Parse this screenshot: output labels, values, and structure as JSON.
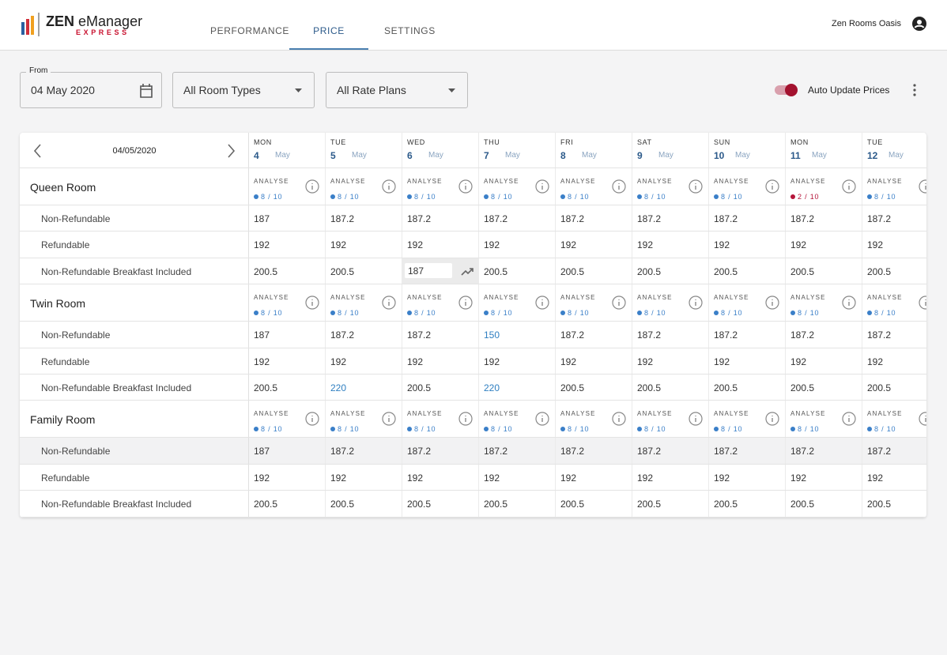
{
  "header": {
    "logo": {
      "brand": "ZEN",
      "product": "eManager",
      "edition": "EXPRESS"
    },
    "nav": [
      {
        "label": "PERFORMANCE"
      },
      {
        "label": "PRICE",
        "active": true
      },
      {
        "label": "SETTINGS",
        "menu": true
      }
    ],
    "user": "Zen Rooms Oasis"
  },
  "filters": {
    "from_label": "From",
    "from_date": "04 May 2020",
    "room_types": "All Room Types",
    "rate_plans": "All Rate Plans",
    "auto_update": {
      "label": "Auto Update Prices",
      "on": true
    }
  },
  "table": {
    "date": "04/05/2020",
    "analyse_label": "ANALYSE",
    "days": [
      {
        "weekday": "MON",
        "day": 4,
        "month": "May"
      },
      {
        "weekday": "TUE",
        "day": 5,
        "month": "May"
      },
      {
        "weekday": "WED",
        "day": 6,
        "month": "May"
      },
      {
        "weekday": "THU",
        "day": 7,
        "month": "May"
      },
      {
        "weekday": "FRI",
        "day": 8,
        "month": "May"
      },
      {
        "weekday": "SAT",
        "day": 9,
        "month": "May"
      },
      {
        "weekday": "SUN",
        "day": 10,
        "month": "May"
      },
      {
        "weekday": "MON",
        "day": 11,
        "month": "May"
      },
      {
        "weekday": "TUE",
        "day": 12,
        "month": "May"
      }
    ],
    "rooms": [
      {
        "name": "Queen Room",
        "availability": [
          {
            "text": "8 / 10",
            "color": "#3a7fc8"
          },
          {
            "text": "8 / 10",
            "color": "#3a7fc8"
          },
          {
            "text": "8 / 10",
            "color": "#3a7fc8"
          },
          {
            "text": "8 / 10",
            "color": "#3a7fc8"
          },
          {
            "text": "8 / 10",
            "color": "#3a7fc8"
          },
          {
            "text": "8 / 10",
            "color": "#3a7fc8"
          },
          {
            "text": "8 / 10",
            "color": "#3a7fc8"
          },
          {
            "text": "2 / 10",
            "color": "#b5153a"
          },
          {
            "text": "8 / 10",
            "color": "#3a7fc8"
          }
        ],
        "rates": [
          {
            "name": "Non-Refundable",
            "values": [
              187,
              187.2,
              187.2,
              187.2,
              187.2,
              187.2,
              187.2,
              187.2,
              187.2
            ]
          },
          {
            "name": "Refundable",
            "values": [
              192,
              192,
              192,
              192,
              192,
              192,
              192,
              192,
              192
            ]
          },
          {
            "name": "Non-Refundable Breakfast Included",
            "values": [
              200.5,
              200.5,
              {
                "value": 187,
                "editing": true
              },
              200.5,
              200.5,
              200.5,
              200.5,
              200.5,
              200.5
            ]
          }
        ]
      },
      {
        "name": "Twin Room",
        "availability": [
          {
            "text": "8 / 10",
            "color": "#3a7fc8"
          },
          {
            "text": "8 / 10",
            "color": "#3a7fc8"
          },
          {
            "text": "8 / 10",
            "color": "#3a7fc8"
          },
          {
            "text": "8 / 10",
            "color": "#3a7fc8"
          },
          {
            "text": "8 / 10",
            "color": "#3a7fc8"
          },
          {
            "text": "8 / 10",
            "color": "#3a7fc8"
          },
          {
            "text": "8 / 10",
            "color": "#3a7fc8"
          },
          {
            "text": "8 / 10",
            "color": "#3a7fc8"
          },
          {
            "text": "8 / 10",
            "color": "#3a7fc8"
          }
        ],
        "rates": [
          {
            "name": "Non-Refundable",
            "values": [
              187,
              187.2,
              187.2,
              {
                "value": 150,
                "color": "#2f7fc1"
              },
              187.2,
              187.2,
              187.2,
              187.2,
              187.2
            ]
          },
          {
            "name": "Refundable",
            "values": [
              192,
              192,
              192,
              192,
              192,
              192,
              192,
              192,
              192
            ]
          },
          {
            "name": "Non-Refundable Breakfast Included",
            "values": [
              200.5,
              {
                "value": 220,
                "color": "#2f7fc1"
              },
              200.5,
              {
                "value": 220,
                "color": "#2f7fc1"
              },
              200.5,
              200.5,
              200.5,
              200.5,
              200.5
            ]
          }
        ]
      },
      {
        "name": "Family Room",
        "availability": [
          {
            "text": "8 / 10",
            "color": "#3a7fc8"
          },
          {
            "text": "8 / 10",
            "color": "#3a7fc8"
          },
          {
            "text": "8 / 10",
            "color": "#3a7fc8"
          },
          {
            "text": "8 / 10",
            "color": "#3a7fc8"
          },
          {
            "text": "8 / 10",
            "color": "#3a7fc8"
          },
          {
            "text": "8 / 10",
            "color": "#3a7fc8"
          },
          {
            "text": "8 / 10",
            "color": "#3a7fc8"
          },
          {
            "text": "8 / 10",
            "color": "#3a7fc8"
          },
          {
            "text": "8 / 10",
            "color": "#3a7fc8"
          }
        ],
        "rates": [
          {
            "name": "Non-Refundable",
            "highlighted": true,
            "values": [
              187,
              187.2,
              187.2,
              187.2,
              187.2,
              187.2,
              187.2,
              187.2,
              187.2
            ]
          },
          {
            "name": "Refundable",
            "values": [
              192,
              192,
              192,
              192,
              192,
              192,
              192,
              192,
              192
            ]
          },
          {
            "name": "Non-Refundable Breakfast Included",
            "values": [
              200.5,
              200.5,
              200.5,
              200.5,
              200.5,
              200.5,
              200.5,
              200.5,
              200.5
            ]
          }
        ]
      }
    ]
  }
}
